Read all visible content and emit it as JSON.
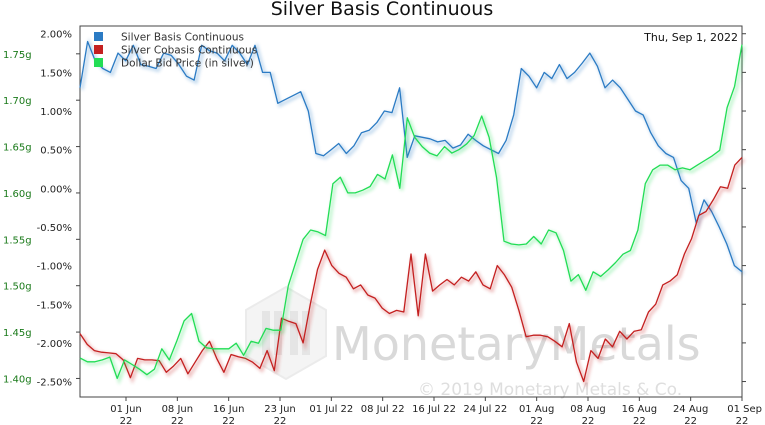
{
  "chart_data": {
    "type": "line",
    "title": "Silver Basis Continuous",
    "date_label": "Thu, Sep 1, 2022",
    "watermark": {
      "brand": "MonetaryMetals",
      "copyright": "© 2019 Monetary Metals & Co."
    },
    "x_ticks": [
      {
        "line1": "01 Jun",
        "line2": "22"
      },
      {
        "line1": "08 Jun",
        "line2": "22"
      },
      {
        "line1": "16 Jun",
        "line2": "22"
      },
      {
        "line1": "23 Jun",
        "line2": "22"
      },
      {
        "line1": "01 Jul 22",
        "line2": ""
      },
      {
        "line1": "08 Jul 22",
        "line2": ""
      },
      {
        "line1": "16 Jul 22",
        "line2": ""
      },
      {
        "line1": "24 Jul 22",
        "line2": ""
      },
      {
        "line1": "01 Aug",
        "line2": "22"
      },
      {
        "line1": "08 Aug",
        "line2": "22"
      },
      {
        "line1": "16 Aug",
        "line2": "22"
      },
      {
        "line1": "24 Aug",
        "line2": "22"
      },
      {
        "line1": "01 Sep",
        "line2": "22"
      }
    ],
    "right_axis": {
      "min": -2.7,
      "max": 2.1,
      "ticks": [
        "2.00%",
        "1.50%",
        "1.00%",
        "0.50%",
        "0.00%",
        "-0.50%",
        "-1.00%",
        "-1.50%",
        "-2.00%",
        "-2.50%"
      ],
      "tick_values": [
        2.0,
        1.5,
        1.0,
        0.5,
        0.0,
        -0.5,
        -1.0,
        -1.5,
        -2.0,
        -2.5
      ]
    },
    "left_axis": {
      "min": 1.38,
      "max": 1.78,
      "ticks": [
        "1.75g",
        "1.70g",
        "1.65g",
        "1.60g",
        "1.55g",
        "1.50g",
        "1.45g",
        "1.40g"
      ],
      "tick_values": [
        1.75,
        1.7,
        1.65,
        1.6,
        1.55,
        1.5,
        1.45,
        1.4
      ]
    },
    "grid": false,
    "legend_position": "top-left",
    "series": [
      {
        "name": "Silver Basis Continuous",
        "color": "#2b7bc4",
        "axis": "right",
        "values": [
          1.3,
          1.9,
          1.65,
          1.55,
          1.5,
          1.75,
          1.65,
          1.85,
          1.6,
          1.58,
          1.55,
          1.75,
          1.72,
          1.6,
          1.45,
          1.4,
          1.85,
          1.78,
          1.75,
          1.65,
          1.85,
          1.75,
          1.6,
          1.85,
          1.5,
          1.5,
          1.1,
          1.15,
          1.2,
          1.25,
          1.0,
          0.45,
          0.42,
          0.5,
          0.58,
          0.45,
          0.55,
          0.72,
          0.75,
          0.85,
          1.0,
          0.98,
          1.3,
          0.4,
          0.68,
          0.66,
          0.64,
          0.6,
          0.62,
          0.52,
          0.56,
          0.7,
          0.62,
          0.55,
          0.5,
          0.45,
          0.62,
          0.95,
          1.55,
          1.45,
          1.3,
          1.5,
          1.42,
          1.6,
          1.42,
          1.5,
          1.62,
          1.75,
          1.58,
          1.3,
          1.4,
          1.3,
          1.15,
          1.0,
          0.95,
          0.72,
          0.55,
          0.45,
          0.4,
          0.1,
          0.0,
          -0.45,
          -0.15,
          -0.3,
          -0.5,
          -0.72,
          -1.0,
          -1.08
        ]
      },
      {
        "name": "Silver Cobasis Continuous",
        "color": "#c42020",
        "axis": "right",
        "values": [
          -1.88,
          -2.02,
          -2.1,
          -2.12,
          -2.13,
          -2.14,
          -2.22,
          -2.45,
          -2.2,
          -2.22,
          -2.22,
          -2.23,
          -2.38,
          -2.3,
          -2.2,
          -2.4,
          -2.25,
          -2.1,
          -1.98,
          -2.2,
          -2.38,
          -2.15,
          -2.18,
          -2.2,
          -2.25,
          -2.33,
          -2.1,
          -2.36,
          -1.68,
          -1.72,
          -1.75,
          -2.0,
          -1.5,
          -1.05,
          -0.8,
          -1.0,
          -1.1,
          -1.15,
          -1.3,
          -1.25,
          -1.38,
          -1.42,
          -1.55,
          -1.62,
          -1.58,
          -1.6,
          -0.85,
          -1.65,
          -0.85,
          -1.33,
          -1.25,
          -1.18,
          -1.25,
          -1.15,
          -1.2,
          -1.08,
          -1.25,
          -1.3,
          -1.0,
          -1.12,
          -1.28,
          -1.58,
          -1.92,
          -1.9,
          -1.9,
          -1.92,
          -1.98,
          -2.05,
          -1.75,
          -2.25,
          -2.5,
          -2.1,
          -2.2,
          -1.95,
          -2.05,
          -1.85,
          -1.95,
          -1.85,
          -1.83,
          -1.6,
          -1.5,
          -1.25,
          -1.2,
          -1.12,
          -0.85,
          -0.65,
          -0.35,
          -0.3,
          -0.15,
          0.02,
          0.0,
          0.3,
          0.4
        ]
      },
      {
        "name": "Dollar Bid Price (in silver)",
        "color": "#22dd55",
        "axis": "left",
        "values": [
          1.422,
          1.418,
          1.418,
          1.42,
          1.423,
          1.4,
          1.42,
          1.415,
          1.41,
          1.404,
          1.41,
          1.432,
          1.42,
          1.44,
          1.462,
          1.47,
          1.44,
          1.433,
          1.432,
          1.432,
          1.432,
          1.438,
          1.425,
          1.44,
          1.438,
          1.454,
          1.452,
          1.452,
          1.5,
          1.525,
          1.55,
          1.56,
          1.558,
          1.554,
          1.61,
          1.617,
          1.6,
          1.6,
          1.603,
          1.607,
          1.62,
          1.615,
          1.641,
          1.605,
          1.681,
          1.66,
          1.65,
          1.643,
          1.64,
          1.65,
          1.643,
          1.647,
          1.653,
          1.662,
          1.683,
          1.66,
          1.617,
          1.548,
          1.545,
          1.544,
          1.545,
          1.553,
          1.545,
          1.56,
          1.557,
          1.538,
          1.505,
          1.512,
          1.495,
          1.515,
          1.51,
          1.517,
          1.525,
          1.534,
          1.538,
          1.56,
          1.61,
          1.625,
          1.63,
          1.63,
          1.625,
          1.627,
          1.625,
          1.63,
          1.635,
          1.64,
          1.646,
          1.692,
          1.715,
          1.76
        ]
      }
    ]
  }
}
